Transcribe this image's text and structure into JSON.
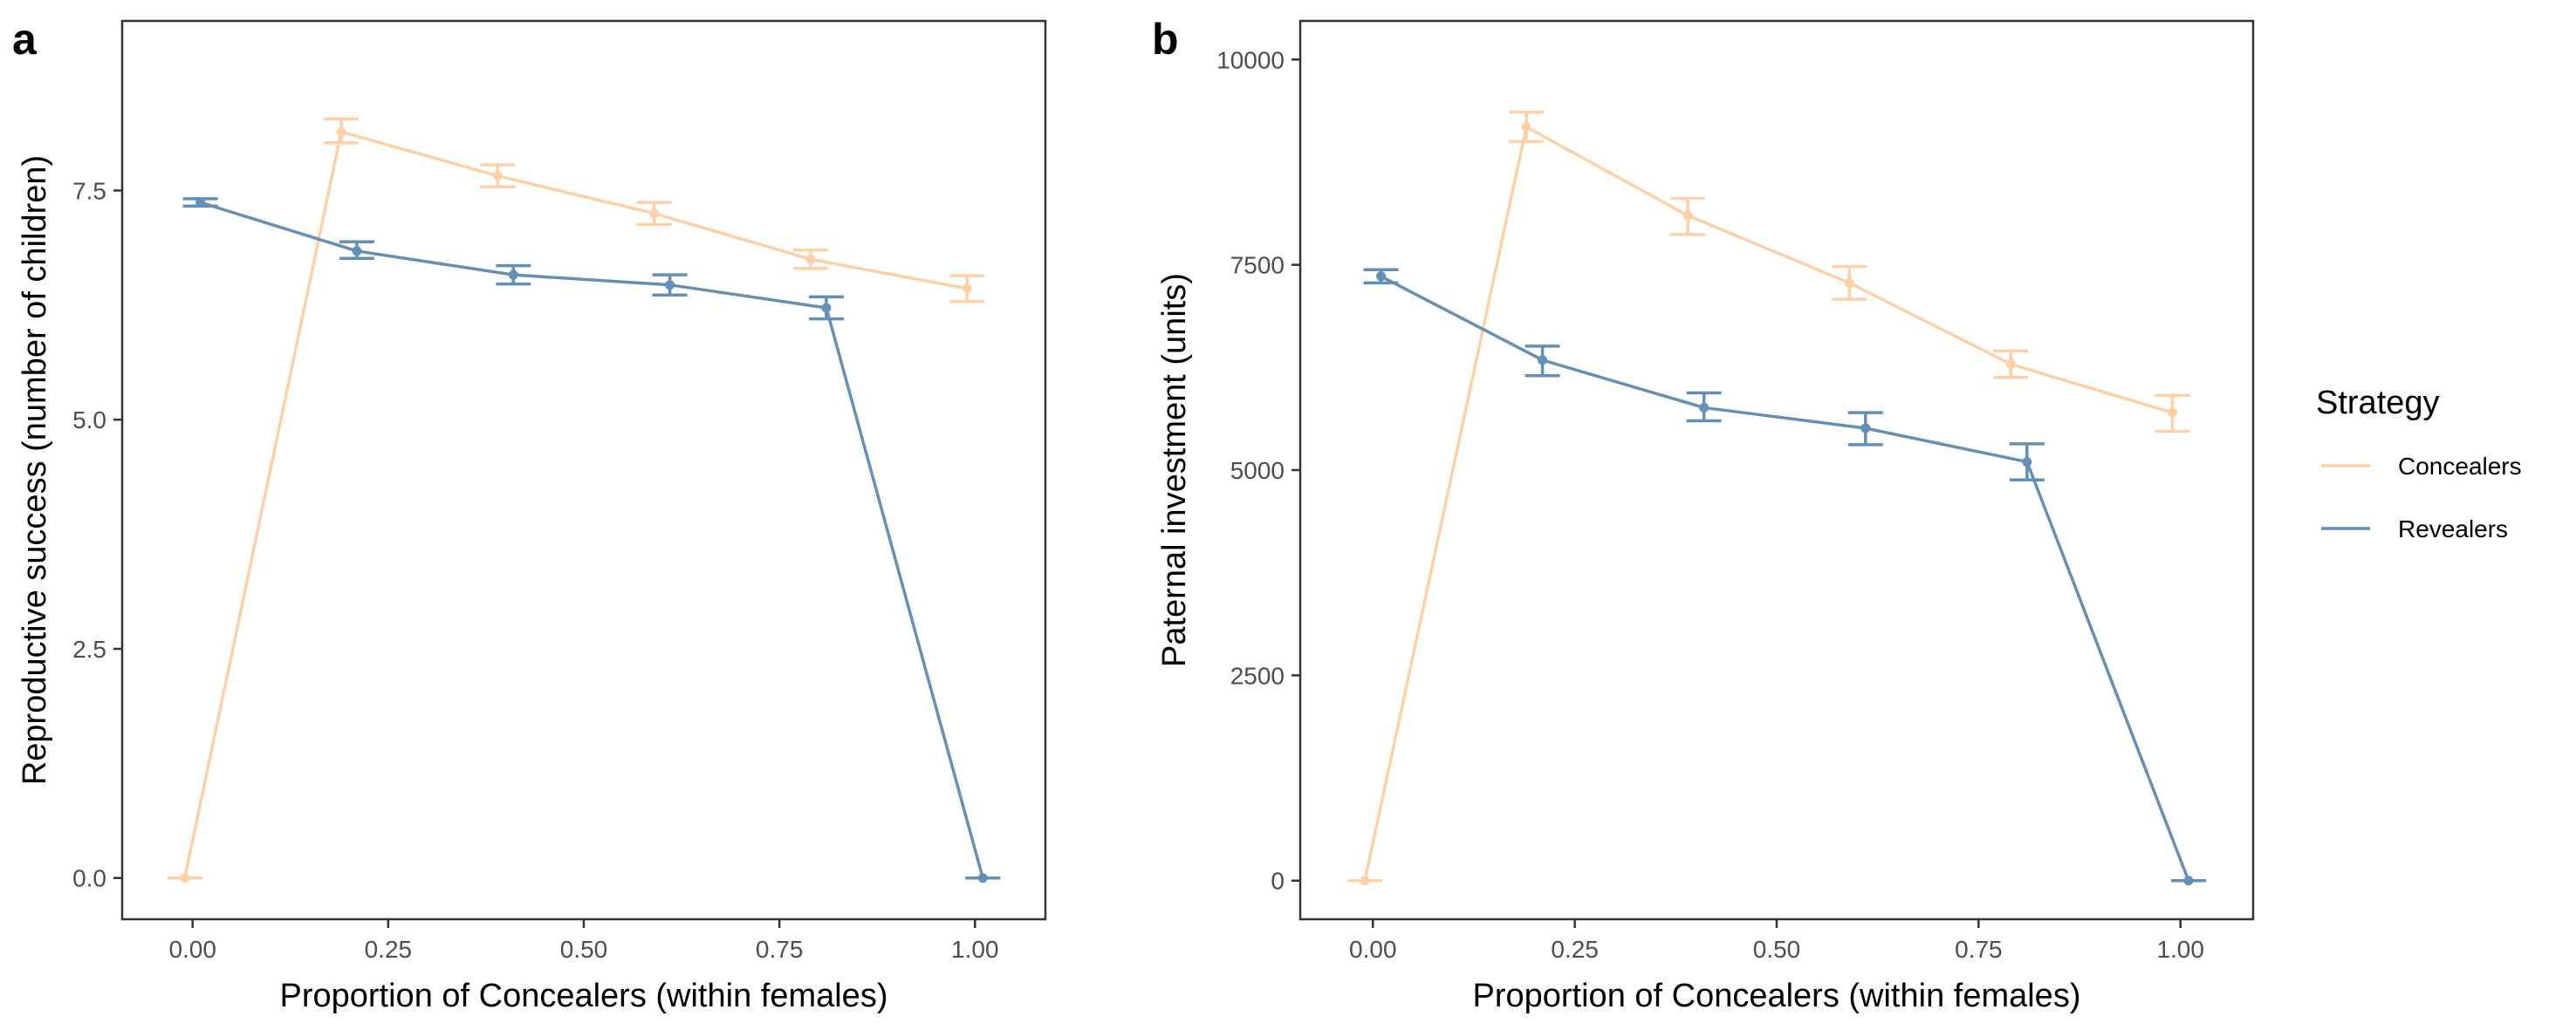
{
  "colors": {
    "Concealers": "#FDD0A7",
    "Revealers": "#6590B5"
  },
  "legend": {
    "title": "Strategy",
    "items": [
      {
        "label": "Concealers",
        "color": "#FDD0A7"
      },
      {
        "label": "Revealers",
        "color": "#6590B5"
      }
    ],
    "position": "right"
  },
  "chart_data": [
    {
      "panel": "a",
      "type": "line",
      "xlabel": "Proportion of Concealers (within females)",
      "ylabel": "Reproductive success (number of children)",
      "xlim": [
        -0.09,
        1.09
      ],
      "ylim": [
        -0.45,
        9.35
      ],
      "xticks": [
        0,
        0.25,
        0.5,
        0.75,
        1
      ],
      "xtick_labels": [
        "0.00",
        "0.25",
        "0.50",
        "0.75",
        "1.00"
      ],
      "yticks": [
        0,
        2.5,
        5,
        7.5
      ],
      "ytick_labels": [
        "0.0",
        "2.5",
        "5.0",
        "7.5"
      ],
      "grid": false,
      "series": [
        {
          "name": "Concealers",
          "x": [
            -0.01,
            0.19,
            0.39,
            0.59,
            0.79,
            0.99
          ],
          "y": [
            0.0,
            8.14,
            7.66,
            7.25,
            6.75,
            6.43
          ],
          "ymin": [
            0.0,
            8.02,
            7.54,
            7.13,
            6.65,
            6.29
          ],
          "ymax": [
            0.0,
            8.28,
            7.78,
            7.37,
            6.85,
            6.57
          ]
        },
        {
          "name": "Revealers",
          "x": [
            0.01,
            0.21,
            0.41,
            0.61,
            0.81,
            1.01
          ],
          "y": [
            7.37,
            6.84,
            6.58,
            6.47,
            6.22,
            0.0
          ],
          "ymin": [
            7.33,
            6.76,
            6.48,
            6.36,
            6.1,
            0.0
          ],
          "ymax": [
            7.41,
            6.94,
            6.68,
            6.58,
            6.34,
            0.0
          ]
        }
      ]
    },
    {
      "panel": "b",
      "type": "line",
      "xlabel": "Proportion of Concealers (within females)",
      "ylabel": "Paternal investment (units)",
      "xlim": [
        -0.09,
        1.09
      ],
      "ylim": [
        -470,
        10470
      ],
      "xticks": [
        0,
        0.25,
        0.5,
        0.75,
        1
      ],
      "xtick_labels": [
        "0.00",
        "0.25",
        "0.50",
        "0.75",
        "1.00"
      ],
      "yticks": [
        0,
        2500,
        5000,
        7500,
        10000
      ],
      "ytick_labels": [
        "0",
        "2500",
        "5000",
        "7500",
        "10000"
      ],
      "grid": false,
      "series": [
        {
          "name": "Concealers",
          "x": [
            -0.01,
            0.19,
            0.39,
            0.59,
            0.79,
            0.99
          ],
          "y": [
            0,
            9180,
            8100,
            7280,
            6290,
            5700
          ],
          "ymin": [
            0,
            9000,
            7870,
            7080,
            6130,
            5470
          ],
          "ymax": [
            0,
            9360,
            8310,
            7480,
            6450,
            5910
          ]
        },
        {
          "name": "Revealers",
          "x": [
            0.01,
            0.21,
            0.41,
            0.61,
            0.81,
            1.01
          ],
          "y": [
            7360,
            6340,
            5760,
            5510,
            5100,
            0
          ],
          "ymin": [
            7280,
            6150,
            5600,
            5310,
            4880,
            0
          ],
          "ymax": [
            7440,
            6510,
            5940,
            5700,
            5320,
            0
          ]
        }
      ]
    }
  ]
}
